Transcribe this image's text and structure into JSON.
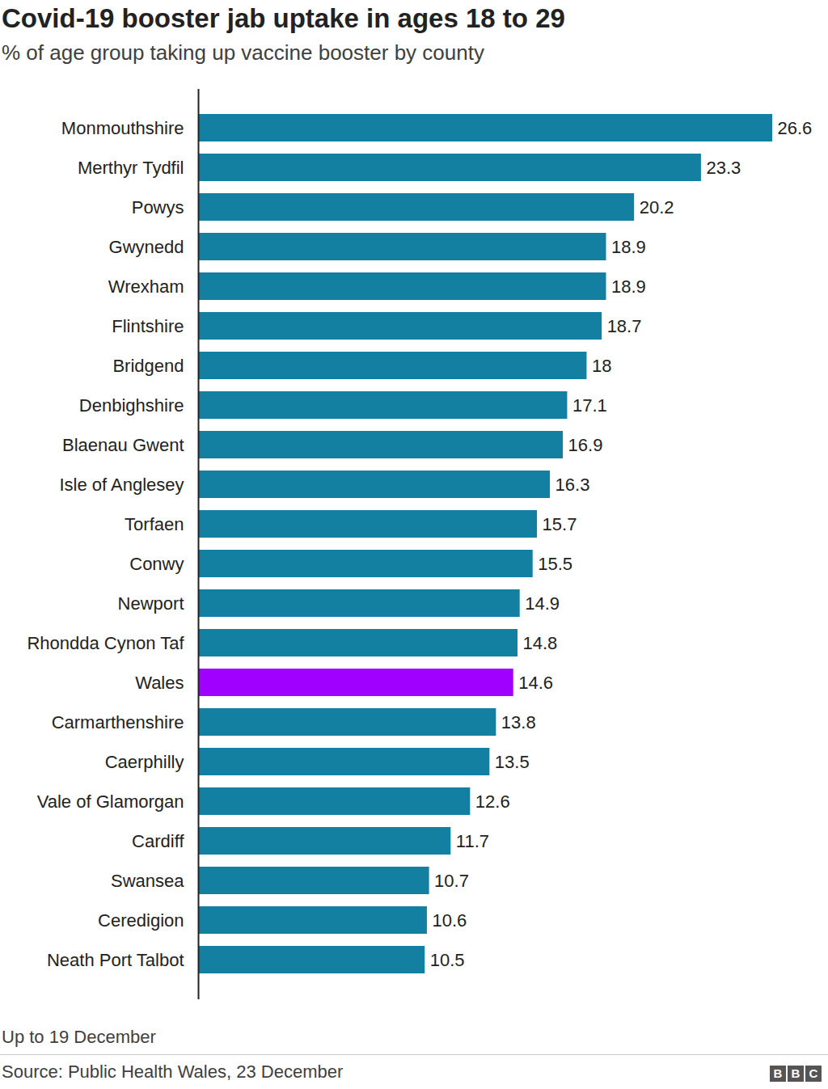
{
  "chart_data": {
    "type": "bar",
    "orientation": "horizontal",
    "title": "Covid-19 booster jab uptake in ages 18 to 29",
    "subtitle": "% of age group taking up vaccine booster by county",
    "categories": [
      "Monmouthshire",
      "Merthyr Tydfil",
      "Powys",
      "Gwynedd",
      "Wrexham",
      "Flintshire",
      "Bridgend",
      "Denbighshire",
      "Blaenau Gwent",
      "Isle of Anglesey",
      "Torfaen",
      "Conwy",
      "Newport",
      "Rhondda Cynon Taf",
      "Wales",
      "Carmarthenshire",
      "Caerphilly",
      "Vale of Glamorgan",
      "Cardiff",
      "Swansea",
      "Ceredigion",
      "Neath Port Talbot"
    ],
    "values": [
      26.6,
      23.3,
      20.2,
      18.9,
      18.9,
      18.7,
      18,
      17.1,
      16.9,
      16.3,
      15.7,
      15.5,
      14.9,
      14.8,
      14.6,
      13.8,
      13.5,
      12.6,
      11.7,
      10.7,
      10.6,
      10.5
    ],
    "colors": [
      "#1380a1",
      "#1380a1",
      "#1380a1",
      "#1380a1",
      "#1380a1",
      "#1380a1",
      "#1380a1",
      "#1380a1",
      "#1380a1",
      "#1380a1",
      "#1380a1",
      "#1380a1",
      "#1380a1",
      "#1380a1",
      "#a000ff",
      "#1380a1",
      "#1380a1",
      "#1380a1",
      "#1380a1",
      "#1380a1",
      "#1380a1",
      "#1380a1"
    ],
    "xlim": [
      0,
      26.6
    ],
    "data_labels": true,
    "tick_labels": "y",
    "grid": false,
    "footnote": "Up to 19 December",
    "source": "Source: Public Health Wales, 23 December",
    "logo": "BBC"
  }
}
